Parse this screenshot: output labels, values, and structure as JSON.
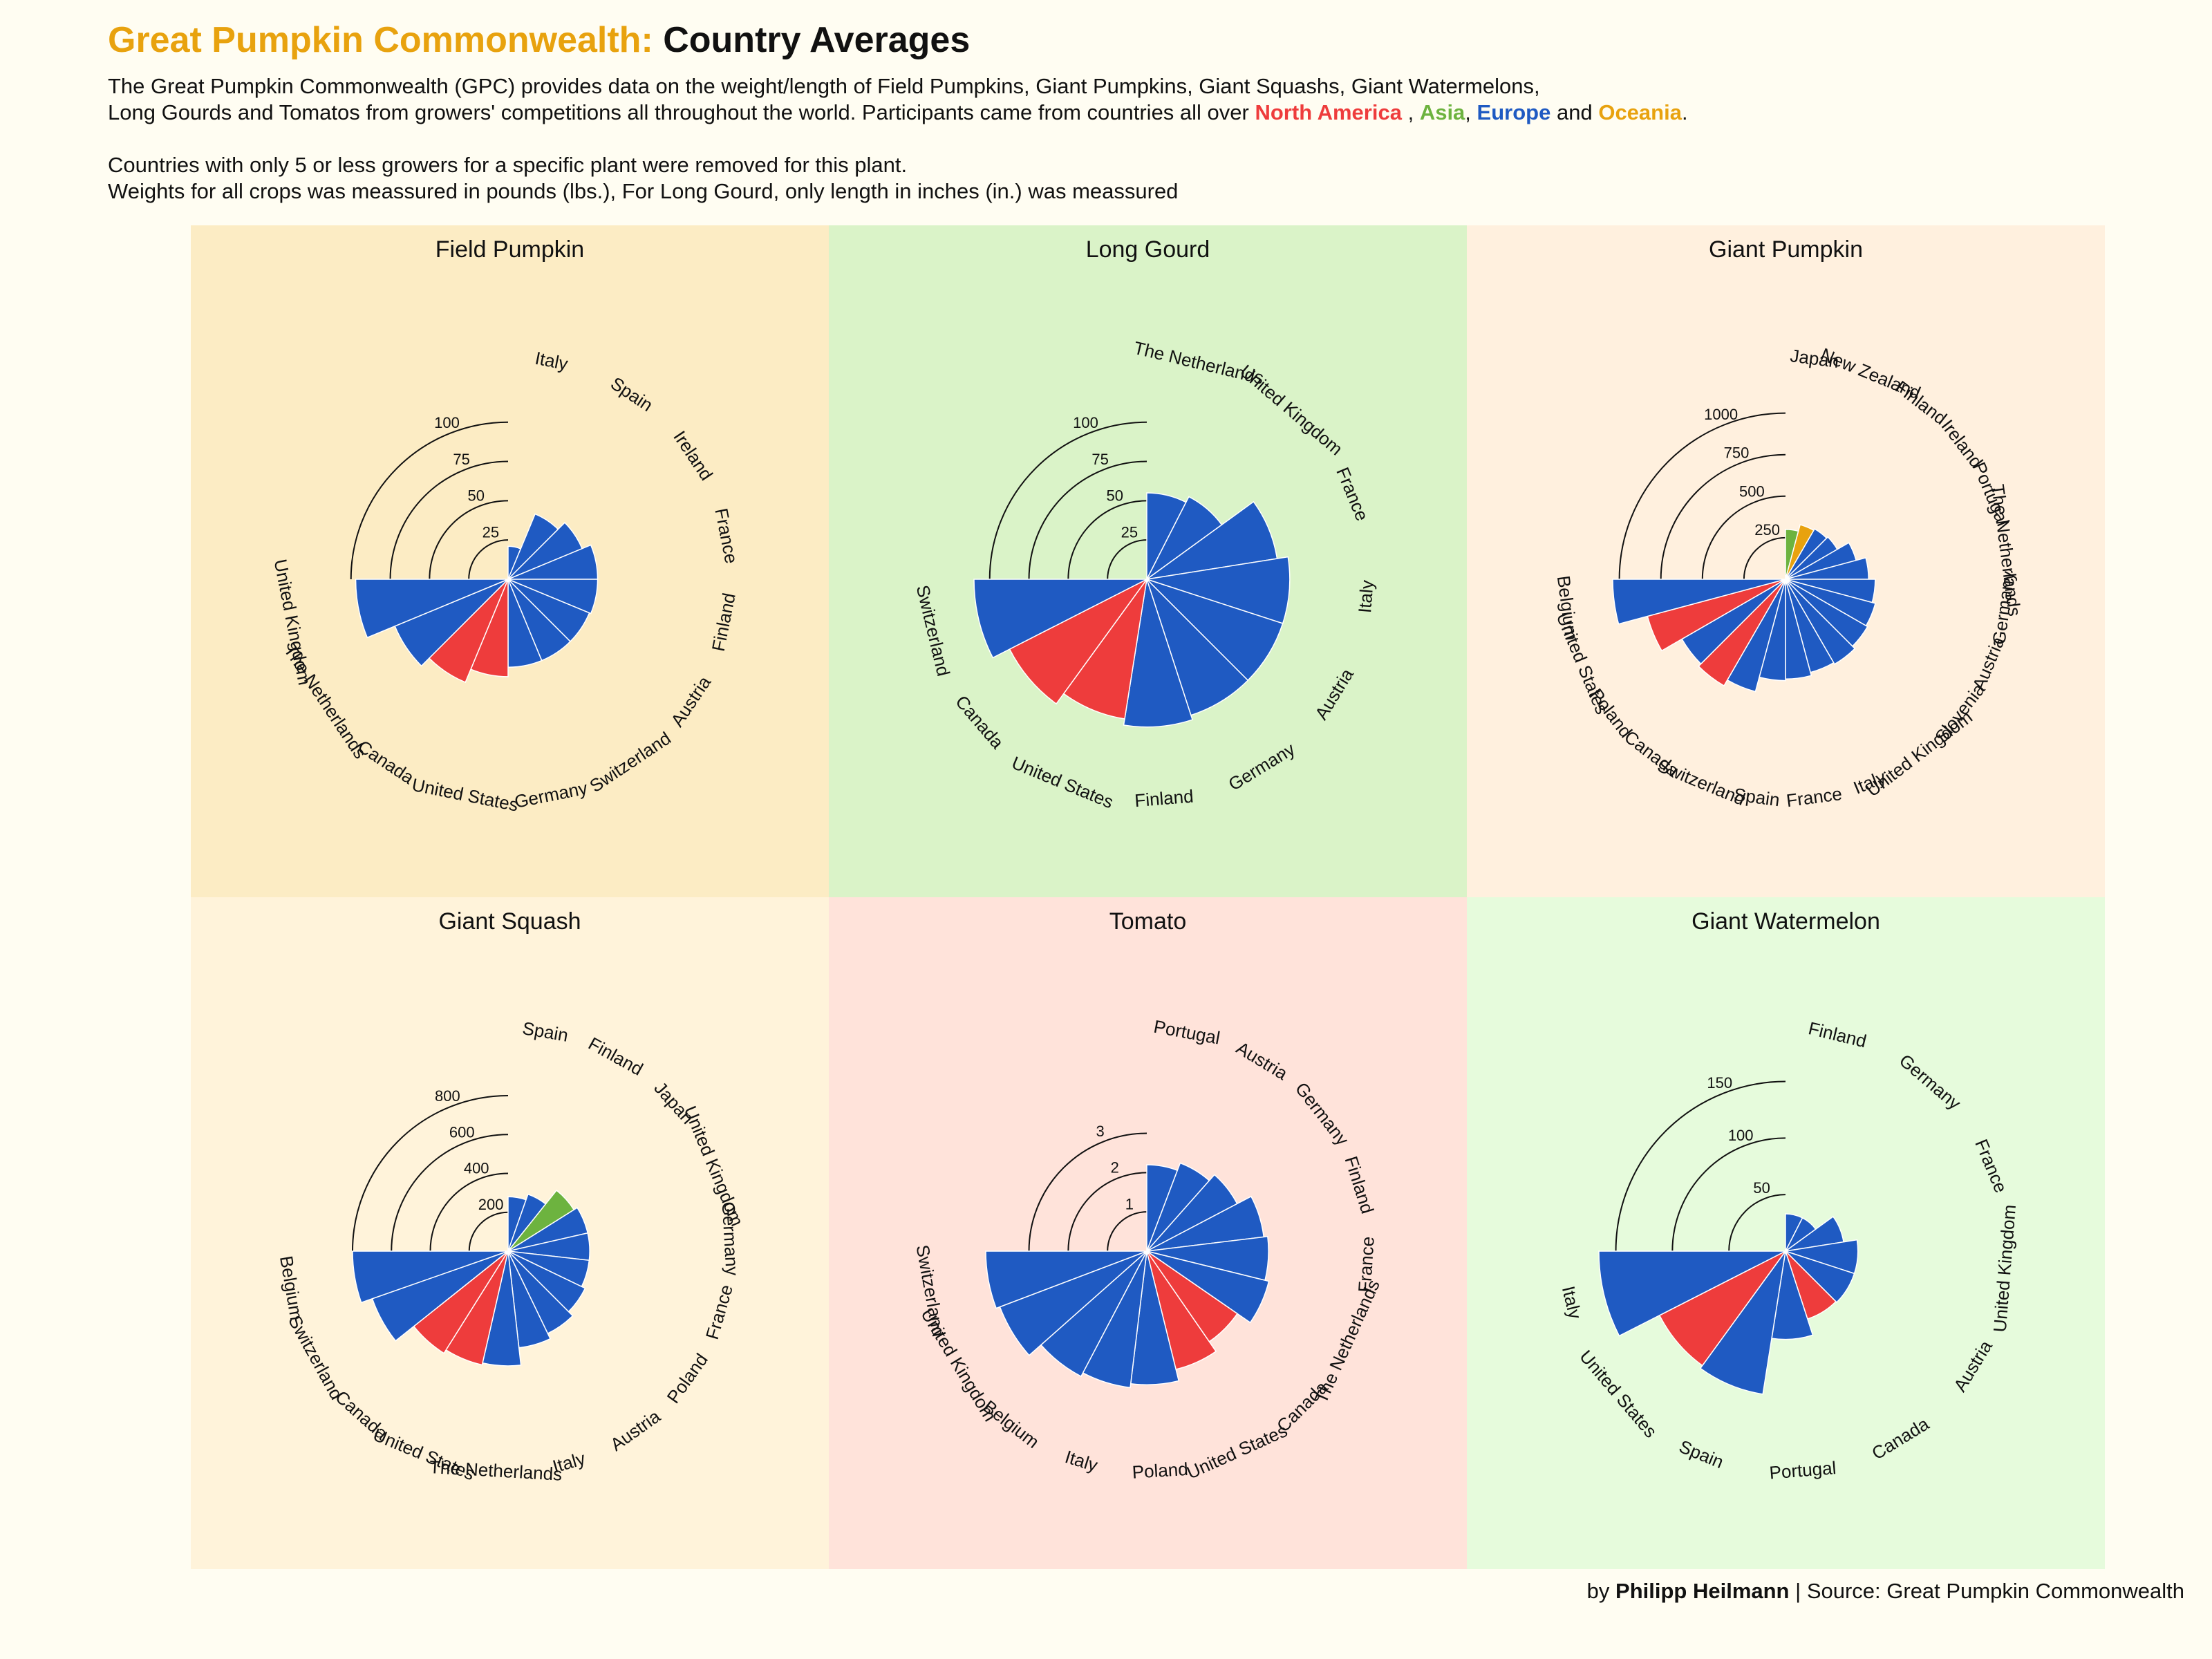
{
  "header": {
    "title_accent": "Great Pumpkin Commonwealth:",
    "title_rest": "Country Averages",
    "desc_line1": "The Great Pumpkin Commonwealth (GPC) provides data on the weight/length of Field Pumpkins, Giant Pumpkins, Giant Squashs, Giant Watermelons,",
    "desc_line2_pre": "Long Gourds and Tomatos from growers' competitions all throughout the world. Participants came from countries all over",
    "region_na": "North America",
    "sep1": " ,",
    "region_as": "Asia",
    "sep2": ",",
    "region_eu": "Europe",
    "sep3": "and",
    "region_oc": "Oceania",
    "end": ".",
    "desc_line3": "Countries with only 5 or less growers for a specific plant were removed for this plant.",
    "desc_line4": "Weights for all crops was meassured in pounds (lbs.), For Long Gourd, only length in inches (in.) was meassured"
  },
  "caption": {
    "prefix": "by",
    "author": "Philipp Heilmann",
    "sep": "|",
    "source": "Source: Great Pumpkin Commonwealth"
  },
  "colors": {
    "north_america": "#ee3c3c",
    "asia": "#6db33f",
    "europe": "#1f5ac2",
    "oceania": "#e8a20e",
    "page_background": "#fffdf2"
  },
  "chart_data": [
    {
      "type": "bar",
      "coord": "polar-half",
      "title": "Field Pumpkin",
      "panel_color": "#fcecc4",
      "max": 110,
      "ticks": [
        25,
        50,
        75,
        100
      ],
      "categories": [
        "Italy",
        "Spain",
        "Ireland",
        "France",
        "Finland",
        "Austria",
        "Switzerland",
        "Germany",
        "United States",
        "Canada",
        "The Netherlands",
        "United Kingdom"
      ],
      "values": [
        21,
        45,
        51,
        57,
        57,
        56,
        56,
        56,
        62,
        71,
        78,
        97
      ],
      "regions": [
        "EU",
        "EU",
        "EU",
        "EU",
        "EU",
        "EU",
        "EU",
        "EU",
        "NA",
        "NA",
        "EU",
        "EU"
      ]
    },
    {
      "type": "bar",
      "coord": "polar-half",
      "title": "Long Gourd",
      "panel_color": "#daf3c8",
      "max": 110,
      "ticks": [
        25,
        50,
        75,
        100
      ],
      "categories": [
        "The Netherlands",
        "United Kingdom",
        "France",
        "Italy",
        "Austria",
        "Germany",
        "Finland",
        "United States",
        "Canada",
        "Switzerland"
      ],
      "values": [
        55,
        59,
        84,
        91,
        91,
        91,
        94,
        90,
        98,
        110
      ],
      "regions": [
        "EU",
        "EU",
        "EU",
        "EU",
        "EU",
        "EU",
        "EU",
        "NA",
        "NA",
        "EU"
      ]
    },
    {
      "type": "bar",
      "coord": "polar-half",
      "title": "Giant Pumpkin",
      "panel_color": "#fff0de",
      "max": 1040,
      "ticks": [
        250,
        500,
        750,
        1000
      ],
      "categories": [
        "Japan",
        "New Zealand",
        "Finland",
        "Ireland",
        "Portugal",
        "The Netherlands",
        "Germany",
        "Austria",
        "Slovenia",
        "United Kingdom",
        "Italy",
        "France",
        "Spain",
        "Switzerland",
        "Canada",
        "Poland",
        "United States",
        "Belgium"
      ],
      "values": [
        300,
        340,
        350,
        360,
        440,
        500,
        540,
        560,
        570,
        590,
        580,
        600,
        610,
        700,
        740,
        720,
        860,
        1040
      ],
      "regions": [
        "AS",
        "OC",
        "EU",
        "EU",
        "EU",
        "EU",
        "EU",
        "EU",
        "EU",
        "EU",
        "EU",
        "EU",
        "EU",
        "EU",
        "NA",
        "EU",
        "NA",
        "EU"
      ]
    },
    {
      "type": "bar",
      "coord": "polar-half",
      "title": "Giant Squash",
      "panel_color": "#fff3da",
      "max": 960,
      "ticks": [
        200,
        400,
        600,
        800
      ],
      "categories": [
        "Spain",
        "Finland",
        "Japan",
        "United Kingdom",
        "Germany",
        "France",
        "Poland",
        "Austria",
        "Italy",
        "The Netherlands",
        "United States",
        "Canada",
        "Switzerland",
        "Belgium"
      ],
      "values": [
        280,
        310,
        400,
        420,
        420,
        420,
        440,
        470,
        500,
        590,
        600,
        620,
        740,
        800
      ],
      "regions": [
        "EU",
        "EU",
        "AS",
        "EU",
        "EU",
        "EU",
        "EU",
        "EU",
        "EU",
        "EU",
        "NA",
        "NA",
        "EU",
        "EU"
      ]
    },
    {
      "type": "bar",
      "coord": "polar-half",
      "title": "Tomato",
      "panel_color": "#ffe3da",
      "max": 4.4,
      "ticks": [
        1,
        2,
        3
      ],
      "categories": [
        "Portugal",
        "Austria",
        "Germany",
        "Finland",
        "France",
        "The Netherlands",
        "Canada",
        "United States",
        "Poland",
        "Italy",
        "Belgium",
        "United Kingdom",
        "Switzerland"
      ],
      "values": [
        2.2,
        2.4,
        2.6,
        3.0,
        3.1,
        3.2,
        2.8,
        3.1,
        3.4,
        3.5,
        3.6,
        4.0,
        4.1
      ],
      "regions": [
        "EU",
        "EU",
        "EU",
        "EU",
        "EU",
        "EU",
        "NA",
        "NA",
        "EU",
        "EU",
        "EU",
        "EU",
        "EU"
      ]
    },
    {
      "type": "bar",
      "coord": "polar-half",
      "title": "Giant Watermelon",
      "panel_color": "#e6fbdc",
      "max": 165,
      "ticks": [
        50,
        100,
        150
      ],
      "categories": [
        "Finland",
        "Germany",
        "France",
        "United Kingdom",
        "Austria",
        "Canada",
        "Portugal",
        "Spain",
        "United States",
        "Italy"
      ],
      "values": [
        33,
        33,
        52,
        64,
        64,
        63,
        78,
        128,
        125,
        165
      ],
      "regions": [
        "EU",
        "EU",
        "EU",
        "EU",
        "EU",
        "NA",
        "EU",
        "EU",
        "NA",
        "EU"
      ]
    }
  ]
}
